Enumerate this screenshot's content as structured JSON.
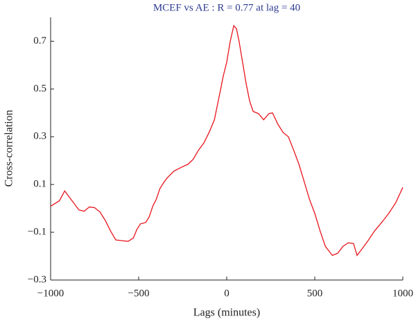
{
  "chart_data": {
    "type": "line",
    "title": "MCEF vs AE : R = 0.77 at lag = 40",
    "xlabel": "Lags (minutes)",
    "ylabel": "Cross-correlation",
    "xlim": [
      -1000,
      1000
    ],
    "ylim": [
      -0.3,
      0.8
    ],
    "xticks": [
      {
        "value": -1000,
        "label": "−1000"
      },
      {
        "value": -500,
        "label": "−500"
      },
      0,
      500,
      1000
    ],
    "yticks": [
      {
        "value": -0.3,
        "label": "−0.3"
      },
      {
        "value": -0.1,
        "label": "−0.1"
      },
      0.1,
      0.3,
      0.5,
      0.7
    ],
    "x": [
      -1000,
      -950,
      -920,
      -900,
      -870,
      -840,
      -810,
      -780,
      -750,
      -720,
      -690,
      -660,
      -630,
      -600,
      -560,
      -530,
      -510,
      -490,
      -460,
      -440,
      -420,
      -400,
      -380,
      -360,
      -340,
      -300,
      -260,
      -220,
      -190,
      -160,
      -130,
      -100,
      -70,
      -40,
      -20,
      0,
      20,
      40,
      55,
      70,
      90,
      110,
      130,
      150,
      180,
      210,
      240,
      260,
      290,
      320,
      350,
      380,
      410,
      440,
      470,
      500,
      530,
      560,
      600,
      630,
      660,
      690,
      720,
      740,
      770,
      800,
      840,
      880,
      920,
      960,
      1000
    ],
    "series": [
      {
        "name": "MCEF vs AE",
        "color": "#e8141c",
        "values": [
          0.009,
          0.032,
          0.073,
          0.053,
          0.024,
          -0.006,
          -0.012,
          0.006,
          0.003,
          -0.015,
          -0.05,
          -0.094,
          -0.132,
          -0.135,
          -0.138,
          -0.124,
          -0.088,
          -0.065,
          -0.059,
          -0.035,
          0.009,
          0.038,
          0.082,
          0.106,
          0.126,
          0.156,
          0.171,
          0.185,
          0.206,
          0.244,
          0.274,
          0.318,
          0.371,
          0.479,
          0.553,
          0.612,
          0.7,
          0.765,
          0.753,
          0.7,
          0.612,
          0.524,
          0.45,
          0.406,
          0.397,
          0.371,
          0.397,
          0.4,
          0.353,
          0.318,
          0.3,
          0.244,
          0.185,
          0.112,
          0.038,
          -0.021,
          -0.094,
          -0.159,
          -0.197,
          -0.188,
          -0.159,
          -0.144,
          -0.147,
          -0.197,
          -0.168,
          -0.138,
          -0.094,
          -0.059,
          -0.021,
          0.024,
          0.088
        ]
      }
    ]
  }
}
